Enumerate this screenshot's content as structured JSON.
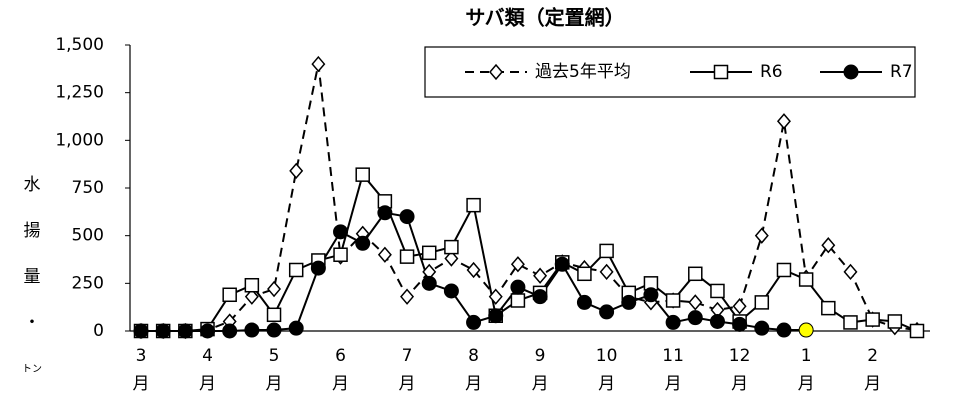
{
  "chart_data": {
    "type": "line",
    "title": "サバ類（定置網）",
    "y_label": "水揚量・トン",
    "categories": [
      "3月",
      null,
      null,
      "4月",
      null,
      null,
      "5月",
      null,
      null,
      "6月",
      null,
      null,
      "7月",
      null,
      null,
      "8月",
      null,
      null,
      "9月",
      null,
      null,
      "10月",
      null,
      null,
      "11月",
      null,
      null,
      "12月",
      null,
      null,
      "1月",
      null,
      null,
      "2月",
      null,
      null
    ],
    "series": [
      {
        "name": "過去5年平均",
        "color": "#000000",
        "dashed": true,
        "marker": "diamond",
        "values": [
          0,
          0,
          0,
          5,
          50,
          180,
          220,
          840,
          1400,
          390,
          510,
          400,
          180,
          310,
          380,
          320,
          180,
          350,
          290,
          360,
          330,
          310,
          180,
          150,
          160,
          150,
          110,
          130,
          500,
          1100,
          280,
          450,
          310,
          60,
          20,
          5
        ]
      },
      {
        "name": "R6",
        "color": "#000000",
        "dashed": false,
        "marker": "square",
        "values": [
          0,
          0,
          0,
          10,
          190,
          240,
          85,
          320,
          370,
          400,
          820,
          680,
          390,
          410,
          440,
          660,
          80,
          160,
          200,
          360,
          300,
          420,
          200,
          250,
          160,
          300,
          210,
          50,
          150,
          320,
          270,
          120,
          45,
          60,
          50,
          0
        ]
      },
      {
        "name": "R7",
        "color": "#000000",
        "dashed": false,
        "marker": "circle",
        "values": [
          0,
          0,
          0,
          0,
          0,
          5,
          5,
          15,
          330,
          520,
          460,
          620,
          600,
          250,
          210,
          45,
          80,
          230,
          180,
          350,
          150,
          100,
          150,
          190,
          45,
          70,
          50,
          35,
          15,
          5,
          5,
          null,
          null,
          null,
          null,
          null
        ]
      }
    ],
    "highlight_color": "#ffff00",
    "ylim": [
      0,
      1500
    ],
    "yticks": [
      0,
      250,
      500,
      750,
      {
        "value": 1000,
        "label": "1,000"
      },
      {
        "value": 1250,
        "label": "1,250"
      },
      {
        "value": 1500,
        "label": "1,500"
      }
    ],
    "grid": false,
    "legend": "top-right"
  }
}
